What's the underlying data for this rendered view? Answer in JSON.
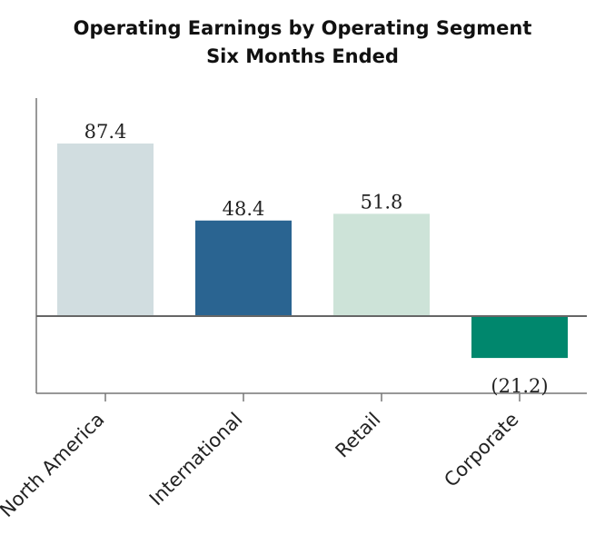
{
  "chart_data": {
    "type": "bar",
    "title": "Operating Earnings by Operating Segment",
    "subtitle": "Six Months Ended",
    "categories": [
      "North America",
      "International",
      "Retail",
      "Corporate"
    ],
    "values": [
      87.4,
      48.4,
      51.8,
      -21.2
    ],
    "value_labels": [
      "87.4",
      "48.4",
      "51.8",
      "(21.2)"
    ],
    "colors": [
      "#d1dde0",
      "#2a6491",
      "#cde3d8",
      "#00876d"
    ],
    "ylim": [
      -40,
      110
    ],
    "grid": false,
    "legend": "none"
  }
}
